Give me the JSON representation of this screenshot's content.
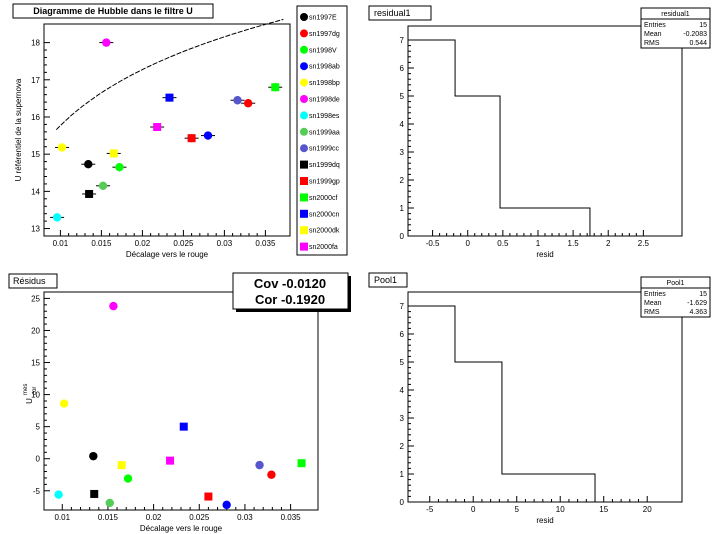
{
  "legend": {
    "entries": [
      {
        "label": "sn1997E",
        "color": "#000000"
      },
      {
        "label": "sn1997dg",
        "color": "#ff0000"
      },
      {
        "label": "sn1998V",
        "color": "#00ff00"
      },
      {
        "label": "sn1998ab",
        "color": "#0000ff"
      },
      {
        "label": "sn1998bp",
        "color": "#ffff00"
      },
      {
        "label": "sn1998de",
        "color": "#ff00ff"
      },
      {
        "label": "sn1998es",
        "color": "#00ffff"
      },
      {
        "label": "sn1999aa",
        "color": "#55cc55"
      },
      {
        "label": "sn1999cc",
        "color": "#5555cc"
      },
      {
        "label": "sn1999dq",
        "color": "#000000"
      },
      {
        "label": "sn1999gp",
        "color": "#ff0000"
      },
      {
        "label": "sn2000cf",
        "color": "#00ff00"
      },
      {
        "label": "sn2000cn",
        "color": "#0000ff"
      },
      {
        "label": "sn2000dk",
        "color": "#ffff00"
      },
      {
        "label": "sn2000fa",
        "color": "#ff00ff"
      }
    ]
  },
  "cov_box": {
    "cov": "Cov -0.0120",
    "cor": "Cor -0.1920"
  },
  "chart_data": [
    {
      "id": "hubble",
      "type": "scatter",
      "title": "Diagramme de Hubble dans le filtre U",
      "xlabel": "Décalage vers le rouge",
      "ylabel": "U référentiel de la supernova",
      "xlim": [
        0.008,
        0.038
      ],
      "ylim": [
        12.8,
        18.5
      ],
      "xticks": [
        0.01,
        0.015,
        0.02,
        0.025,
        0.03,
        0.035
      ],
      "xticklabels": [
        "0.01",
        "0.015",
        "0.02",
        "0.025",
        "0.03",
        "0.035"
      ],
      "yticks": [
        13,
        14,
        15,
        16,
        17,
        18
      ],
      "yticklabels": [
        "13",
        "14",
        "15",
        "16",
        "17",
        "18"
      ],
      "fit_curve": {
        "formula": "5*log10(z)+25.77",
        "x_range": [
          0.0095,
          0.0372
        ]
      },
      "points": [
        {
          "name": "sn1997E",
          "x": 0.0134,
          "y": 14.73,
          "marker": "circle",
          "color": "#000000"
        },
        {
          "name": "sn1997dg",
          "x": 0.0329,
          "y": 16.37,
          "marker": "circle",
          "color": "#ff0000"
        },
        {
          "name": "sn1998V",
          "x": 0.0172,
          "y": 14.65,
          "marker": "circle",
          "color": "#00ff00"
        },
        {
          "name": "sn1998ab",
          "x": 0.028,
          "y": 15.5,
          "marker": "circle",
          "color": "#0000ff"
        },
        {
          "name": "sn1998bp",
          "x": 0.0102,
          "y": 15.18,
          "marker": "circle",
          "color": "#ffff00"
        },
        {
          "name": "sn1998de",
          "x": 0.0156,
          "y": 18.0,
          "marker": "circle",
          "color": "#ff00ff"
        },
        {
          "name": "sn1998es",
          "x": 0.0096,
          "y": 13.3,
          "marker": "circle",
          "color": "#00ffff"
        },
        {
          "name": "sn1999aa",
          "x": 0.0152,
          "y": 14.15,
          "marker": "circle",
          "color": "#55cc55"
        },
        {
          "name": "sn1999cc",
          "x": 0.0316,
          "y": 16.45,
          "marker": "circle",
          "color": "#5555cc"
        },
        {
          "name": "sn1999dq",
          "x": 0.0135,
          "y": 13.93,
          "marker": "square",
          "color": "#000000"
        },
        {
          "name": "sn1999gp",
          "x": 0.026,
          "y": 15.43,
          "marker": "square",
          "color": "#ff0000"
        },
        {
          "name": "sn2000cf",
          "x": 0.0362,
          "y": 16.8,
          "marker": "square",
          "color": "#00ff00"
        },
        {
          "name": "sn2000cn",
          "x": 0.0233,
          "y": 16.52,
          "marker": "square",
          "color": "#0000ff"
        },
        {
          "name": "sn2000dk",
          "x": 0.0165,
          "y": 15.02,
          "marker": "square",
          "color": "#ffff00"
        },
        {
          "name": "sn2000fa",
          "x": 0.0218,
          "y": 15.73,
          "marker": "square",
          "color": "#ff00ff"
        }
      ]
    },
    {
      "id": "residus",
      "type": "scatter",
      "title": "Résidus",
      "xlabel": "Décalage vers le rouge",
      "ylabel": "U",
      "ylabel_sup": "mes",
      "ylabel_sub": "cor",
      "xlim": [
        0.008,
        0.038
      ],
      "ylim": [
        -8,
        26
      ],
      "xticks": [
        0.01,
        0.015,
        0.02,
        0.025,
        0.03,
        0.035
      ],
      "xticklabels": [
        "0.01",
        "0.015",
        "0.02",
        "0.025",
        "0.03",
        "0.035"
      ],
      "yticks": [
        -5,
        0,
        5,
        10,
        15,
        20,
        25
      ],
      "yticklabels": [
        "-5",
        "0",
        "5",
        "10",
        "15",
        "20",
        "25"
      ],
      "points": [
        {
          "name": "sn1997E",
          "x": 0.0134,
          "y": 0.4,
          "marker": "circle",
          "color": "#000000"
        },
        {
          "name": "sn1997dg",
          "x": 0.0329,
          "y": -2.5,
          "marker": "circle",
          "color": "#ff0000"
        },
        {
          "name": "sn1998V",
          "x": 0.0172,
          "y": -3.1,
          "marker": "circle",
          "color": "#00ff00"
        },
        {
          "name": "sn1998ab",
          "x": 0.028,
          "y": -7.2,
          "marker": "circle",
          "color": "#0000ff"
        },
        {
          "name": "sn1998bp",
          "x": 0.0102,
          "y": 8.6,
          "marker": "circle",
          "color": "#ffff00"
        },
        {
          "name": "sn1998de",
          "x": 0.0156,
          "y": 23.8,
          "marker": "circle",
          "color": "#ff00ff"
        },
        {
          "name": "sn1998es",
          "x": 0.0096,
          "y": -5.6,
          "marker": "circle",
          "color": "#00ffff"
        },
        {
          "name": "sn1999aa",
          "x": 0.0152,
          "y": -6.9,
          "marker": "circle",
          "color": "#55cc55"
        },
        {
          "name": "sn1999cc",
          "x": 0.0316,
          "y": -1.0,
          "marker": "circle",
          "color": "#5555cc"
        },
        {
          "name": "sn1999dq",
          "x": 0.0135,
          "y": -5.5,
          "marker": "square",
          "color": "#000000"
        },
        {
          "name": "sn1999gp",
          "x": 0.026,
          "y": -5.9,
          "marker": "square",
          "color": "#ff0000"
        },
        {
          "name": "sn2000cf",
          "x": 0.0362,
          "y": -0.7,
          "marker": "square",
          "color": "#00ff00"
        },
        {
          "name": "sn2000cn",
          "x": 0.0233,
          "y": 5.0,
          "marker": "square",
          "color": "#0000ff"
        },
        {
          "name": "sn2000dk",
          "x": 0.0165,
          "y": -1.0,
          "marker": "square",
          "color": "#ffff00"
        },
        {
          "name": "sn2000fa",
          "x": 0.0218,
          "y": -0.3,
          "marker": "square",
          "color": "#ff00ff"
        }
      ]
    },
    {
      "id": "residual1",
      "type": "histogram",
      "title": "residual1",
      "xlabel": "resid",
      "ylabel": "",
      "xlim": [
        -0.85,
        3.05
      ],
      "ylim": [
        0,
        7.5
      ],
      "xticks": [
        -0.5,
        0,
        0.5,
        1,
        1.5,
        2,
        2.5
      ],
      "xticklabels": [
        "-0.5",
        "0",
        "0.5",
        "1",
        "1.5",
        "2",
        "2.5"
      ],
      "yticks": [
        0,
        1,
        2,
        3,
        4,
        5,
        6,
        7
      ],
      "yticklabels": [
        "0",
        "1",
        "2",
        "3",
        "4",
        "5",
        "6",
        "7"
      ],
      "bin_edges": [
        -0.85,
        -0.18,
        0.46,
        1.74
      ],
      "counts": [
        7,
        5,
        1
      ],
      "stats": {
        "name": "residual1",
        "entries": "15",
        "mean": "-0.2083",
        "rms": "0.544"
      }
    },
    {
      "id": "pool1",
      "type": "histogram",
      "title": "Pool1",
      "xlabel": "resid",
      "ylabel": "",
      "xlim": [
        -7.5,
        24
      ],
      "ylim": [
        0,
        7.5
      ],
      "xticks": [
        -5,
        0,
        5,
        10,
        15,
        20
      ],
      "xticklabels": [
        "-5",
        "0",
        "5",
        "10",
        "15",
        "20"
      ],
      "yticks": [
        0,
        1,
        2,
        3,
        4,
        5,
        6,
        7
      ],
      "yticklabels": [
        "0",
        "1",
        "2",
        "3",
        "4",
        "5",
        "6",
        "7"
      ],
      "bin_edges": [
        -7.5,
        -2.1,
        3.3,
        14.0
      ],
      "counts": [
        7,
        5,
        1
      ],
      "stats": {
        "name": "Pool1",
        "entries": "15",
        "mean": "-1.629",
        "rms": "4.363"
      }
    }
  ],
  "stat_labels": {
    "entries": "Entries",
    "mean": "Mean",
    "rms": "RMS"
  }
}
